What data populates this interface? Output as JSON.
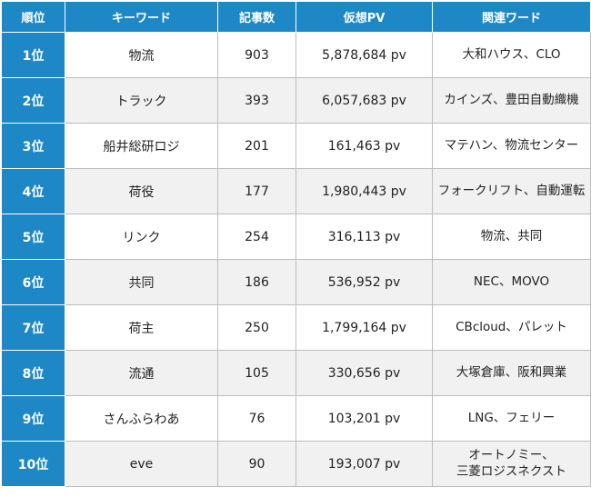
{
  "headers": {
    "rank": "順位",
    "keyword": "キーワード",
    "articles": "記事数",
    "pv": "仮想PV",
    "related": "関連ワード"
  },
  "rows": [
    {
      "rank": "1位",
      "keyword": "物流",
      "articles": "903",
      "pv": "5,878,684 pv",
      "related": "大和ハウス、CLO"
    },
    {
      "rank": "2位",
      "keyword": "トラック",
      "articles": "393",
      "pv": "6,057,683 pv",
      "related": "カインズ、豊田自動織機"
    },
    {
      "rank": "3位",
      "keyword": "船井総研ロジ",
      "articles": "201",
      "pv": "161,463 pv",
      "related": "マテハン、物流センター"
    },
    {
      "rank": "4位",
      "keyword": "荷役",
      "articles": "177",
      "pv": "1,980,443 pv",
      "related": "フォークリフト、自動運転"
    },
    {
      "rank": "5位",
      "keyword": "リンク",
      "articles": "254",
      "pv": "316,113 pv",
      "related": "物流、共同"
    },
    {
      "rank": "6位",
      "keyword": "共同",
      "articles": "186",
      "pv": "536,952 pv",
      "related": "NEC、MOVO"
    },
    {
      "rank": "7位",
      "keyword": "荷主",
      "articles": "250",
      "pv": "1,799,164 pv",
      "related": "CBcloud、パレット"
    },
    {
      "rank": "8位",
      "keyword": "流通",
      "articles": "105",
      "pv": "330,656 pv",
      "related": "大塚倉庫、阪和興業"
    },
    {
      "rank": "9位",
      "keyword": "さんふらわあ",
      "articles": "76",
      "pv": "103,201 pv",
      "related": "LNG、フェリー"
    },
    {
      "rank": "10位",
      "keyword": "eve",
      "articles": "90",
      "pv": "193,007 pv",
      "related": "オートノミー、\n三菱ロジスネクスト"
    }
  ],
  "colors": {
    "header_bg": "#1e88c7",
    "header_text": "#ffffff",
    "row_alt_bg": "#f1f1f1",
    "border": "#bdbdbd"
  }
}
